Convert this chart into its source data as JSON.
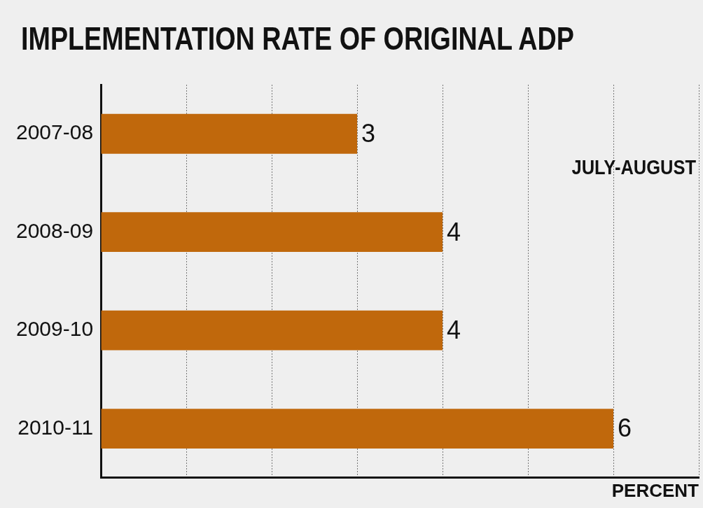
{
  "chart_data": {
    "type": "bar",
    "orientation": "horizontal",
    "title": "IMPLEMENTATION RATE OF ORIGINAL ADP",
    "annotations": [
      "JULY-AUGUST"
    ],
    "xlabel": "PERCENT",
    "categories": [
      "2007-08",
      "2008-09",
      "2009-10",
      "2010-11"
    ],
    "values": [
      3,
      4,
      4,
      6
    ],
    "color": "#c0680c",
    "data_labels": true,
    "xlim": [
      0,
      7
    ],
    "xticks": [
      {
        "value": 0,
        "label": null
      },
      {
        "value": 1,
        "label": null
      },
      {
        "value": 2,
        "label": null
      },
      {
        "value": 3,
        "label": null
      },
      {
        "value": 4,
        "label": null
      },
      {
        "value": 5,
        "label": null
      },
      {
        "value": 6,
        "label": null
      },
      {
        "value": 7,
        "label": null
      }
    ],
    "grid": "x",
    "tick_labels": "y",
    "legend": false
  }
}
